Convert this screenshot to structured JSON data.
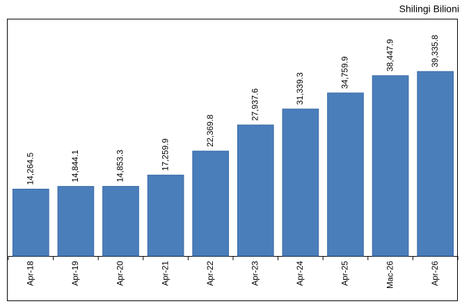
{
  "chart_data": {
    "type": "bar",
    "unit_label": "Shilingi Bilioni",
    "categories": [
      "Apr-18",
      "Apr-19",
      "Apr-20",
      "Apr-21",
      "Apr-22",
      "Apr-23",
      "Apr-24",
      "Apr-25",
      "Mac-26",
      "Apr-26"
    ],
    "values": [
      14264.5,
      14844.1,
      14853.3,
      17259.9,
      22369.8,
      27937.6,
      31339.3,
      34759.9,
      38447.9,
      39335.8
    ],
    "value_labels": [
      "14,264.5",
      "14,844.1",
      "14,853.3",
      "17,259.9",
      "22,369.8",
      "27,937.6",
      "31,339.3",
      "34,759.9",
      "38,447.9",
      "39,335.8"
    ],
    "color": "#4a7ebb"
  }
}
